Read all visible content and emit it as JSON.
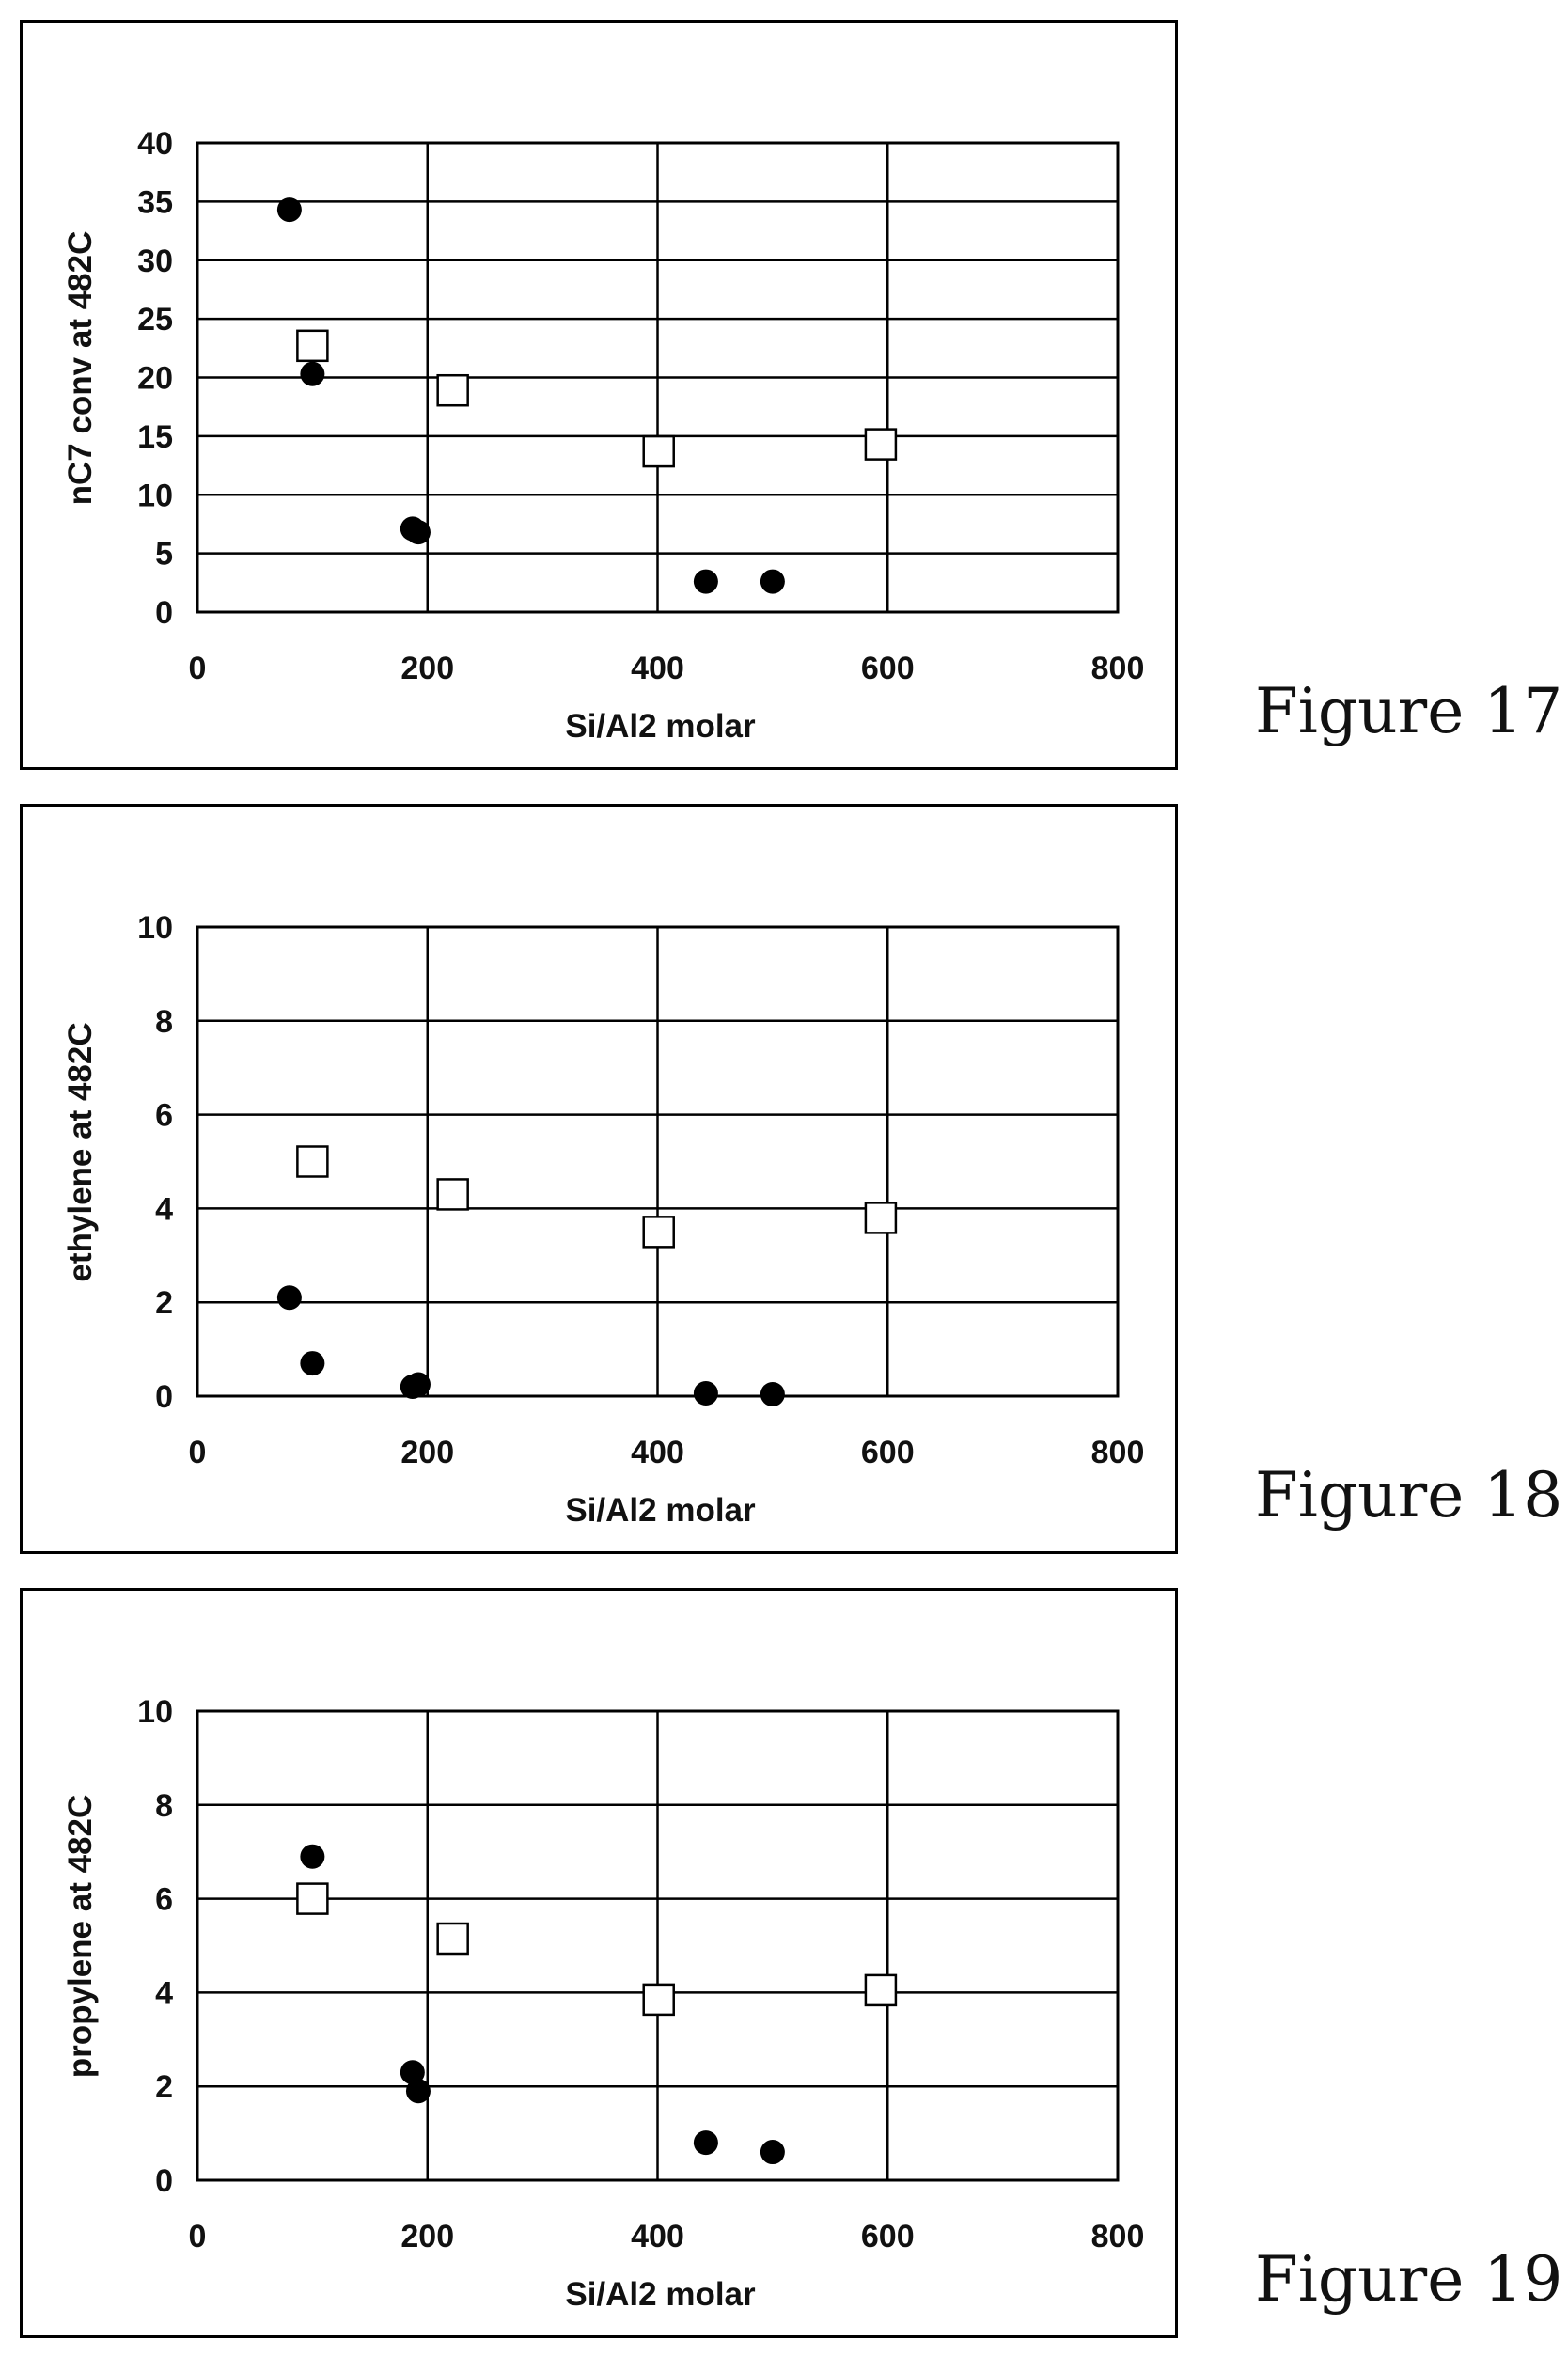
{
  "figures": [
    {
      "label": "Figure 17",
      "chart_data": {
        "type": "scatter",
        "xlabel": "Si/Al2 molar",
        "ylabel": "nC7 conv at 482C",
        "xlim": [
          0,
          800
        ],
        "ylim": [
          0,
          40
        ],
        "xticks": [
          0,
          200,
          400,
          600,
          800
        ],
        "yticks": [
          0,
          5,
          10,
          15,
          20,
          25,
          30,
          35,
          40
        ],
        "grid": true,
        "series": [
          {
            "marker": "filled-circle",
            "color": "#000000",
            "points": [
              [
                80,
                34.3
              ],
              [
                100,
                20.3
              ],
              [
                187,
                7.1
              ],
              [
                192,
                6.8
              ],
              [
                442,
                2.6
              ],
              [
                500,
                2.6
              ]
            ]
          },
          {
            "marker": "open-square",
            "color": "#000000",
            "points": [
              [
                100,
                22.7
              ],
              [
                222,
                18.9
              ],
              [
                401,
                13.7
              ],
              [
                594,
                14.3
              ]
            ]
          }
        ]
      }
    },
    {
      "label": "Figure 18",
      "chart_data": {
        "type": "scatter",
        "xlabel": "Si/Al2 molar",
        "ylabel": "ethylene at 482C",
        "xlim": [
          0,
          800
        ],
        "ylim": [
          0,
          10
        ],
        "xticks": [
          0,
          200,
          400,
          600,
          800
        ],
        "yticks": [
          0,
          2,
          4,
          6,
          8,
          10
        ],
        "grid": true,
        "series": [
          {
            "marker": "filled-circle",
            "color": "#000000",
            "points": [
              [
                80,
                2.1
              ],
              [
                100,
                0.7
              ],
              [
                187,
                0.2
              ],
              [
                192,
                0.25
              ],
              [
                442,
                0.06
              ],
              [
                500,
                0.04
              ]
            ]
          },
          {
            "marker": "open-square",
            "color": "#000000",
            "points": [
              [
                100,
                5.0
              ],
              [
                222,
                4.3
              ],
              [
                401,
                3.5
              ],
              [
                594,
                3.8
              ]
            ]
          }
        ]
      }
    },
    {
      "label": "Figure 19",
      "chart_data": {
        "type": "scatter",
        "xlabel": "Si/Al2 molar",
        "ylabel": "propylene at 482C",
        "xlim": [
          0,
          800
        ],
        "ylim": [
          0,
          10
        ],
        "xticks": [
          0,
          200,
          400,
          600,
          800
        ],
        "yticks": [
          0,
          2,
          4,
          6,
          8,
          10
        ],
        "grid": true,
        "series": [
          {
            "marker": "filled-circle",
            "color": "#000000",
            "points": [
              [
                100,
                6.9
              ],
              [
                187,
                2.3
              ],
              [
                192,
                1.9
              ],
              [
                442,
                0.8
              ],
              [
                500,
                0.6
              ]
            ]
          },
          {
            "marker": "open-square",
            "color": "#000000",
            "points": [
              [
                100,
                6.0
              ],
              [
                222,
                5.15
              ],
              [
                401,
                3.85
              ],
              [
                594,
                4.05
              ]
            ]
          }
        ]
      }
    }
  ]
}
